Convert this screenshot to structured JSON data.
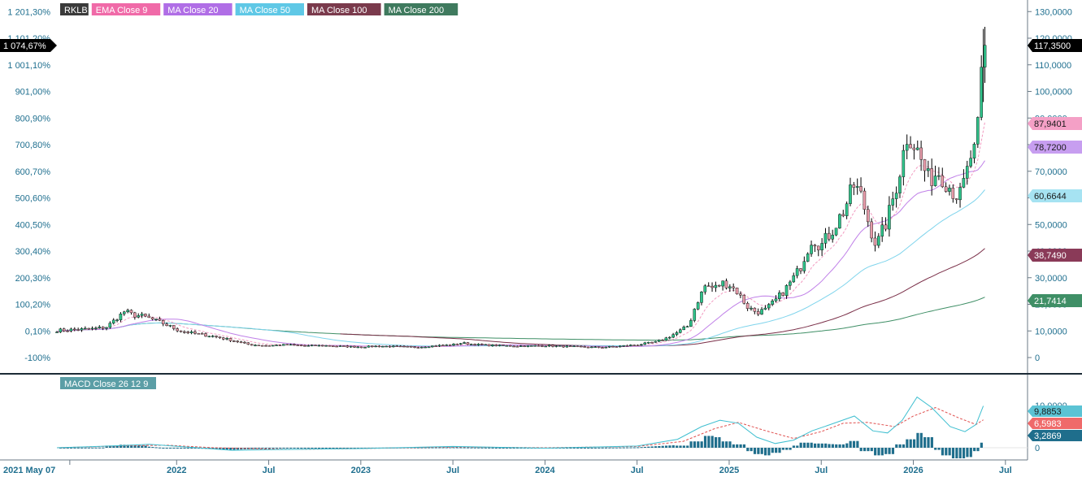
{
  "chart_data": {
    "type": "candlestick",
    "symbol": "RKLB",
    "legend": [
      {
        "label": "RKLB",
        "color": "#2b2b2b"
      },
      {
        "label": "EMA  Close 9",
        "color": "#f06aa8"
      },
      {
        "label": "MA  Close 20",
        "color": "#b06ee6"
      },
      {
        "label": "MA  Close 50",
        "color": "#5fc8e6"
      },
      {
        "label": "MA  Close 100",
        "color": "#7a3a4c"
      },
      {
        "label": "MA  Close 200",
        "color": "#3f7a5e"
      }
    ],
    "price_axis": {
      "ticks": [
        "0",
        "10,0000",
        "20,0000",
        "30,0000",
        "40,0000",
        "50,0000",
        "60,0000",
        "70,0000",
        "80,0000",
        "90,0000",
        "100,0000",
        "110,0000",
        "120,0000",
        "130,0000"
      ],
      "ylim": [
        0,
        130
      ]
    },
    "percent_axis": {
      "ticks": [
        "-100%",
        "0,10%",
        "100,20%",
        "200,30%",
        "300,40%",
        "400,50%",
        "500,60%",
        "600,70%",
        "700,80%",
        "800,90%",
        "901,00%",
        "1 001,10%",
        "1 101,20%",
        "1 201,30%"
      ]
    },
    "x_axis": {
      "start_label": "2021 May 07",
      "ticks": [
        {
          "label": "2022",
          "x": 2022.0
        },
        {
          "label": "Jul",
          "x": 2022.5
        },
        {
          "label": "2023",
          "x": 2023.0
        },
        {
          "label": "Jul",
          "x": 2023.5
        },
        {
          "label": "2024",
          "x": 2024.0
        },
        {
          "label": "Jul",
          "x": 2024.5
        },
        {
          "label": "2025",
          "x": 2025.0
        },
        {
          "label": "Jul",
          "x": 2025.5
        },
        {
          "label": "2026",
          "x": 2026.0
        },
        {
          "label": "Jul",
          "x": 2026.5
        }
      ],
      "xlim": [
        2021.35,
        2026.62
      ]
    },
    "price_path": [
      [
        2021.35,
        10.2
      ],
      [
        2021.45,
        10.5
      ],
      [
        2021.55,
        10.8
      ],
      [
        2021.62,
        11.5
      ],
      [
        2021.67,
        14.5
      ],
      [
        2021.72,
        17.5
      ],
      [
        2021.76,
        16.0
      ],
      [
        2021.82,
        15.5
      ],
      [
        2021.86,
        14.5
      ],
      [
        2021.92,
        13.0
      ],
      [
        2021.97,
        11.5
      ],
      [
        2022.02,
        10.0
      ],
      [
        2022.1,
        9.0
      ],
      [
        2022.2,
        8.0
      ],
      [
        2022.3,
        6.5
      ],
      [
        2022.4,
        4.8
      ],
      [
        2022.5,
        4.5
      ],
      [
        2022.6,
        4.8
      ],
      [
        2022.7,
        4.4
      ],
      [
        2022.8,
        4.5
      ],
      [
        2022.9,
        4.2
      ],
      [
        2023.0,
        4.0
      ],
      [
        2023.1,
        4.3
      ],
      [
        2023.2,
        4.1
      ],
      [
        2023.3,
        3.9
      ],
      [
        2023.4,
        4.4
      ],
      [
        2023.5,
        4.8
      ],
      [
        2023.55,
        5.5
      ],
      [
        2023.6,
        5.0
      ],
      [
        2023.7,
        4.6
      ],
      [
        2023.8,
        4.4
      ],
      [
        2023.9,
        4.3
      ],
      [
        2024.0,
        4.5
      ],
      [
        2024.1,
        4.2
      ],
      [
        2024.2,
        4.0
      ],
      [
        2024.3,
        3.8
      ],
      [
        2024.4,
        4.2
      ],
      [
        2024.5,
        4.8
      ],
      [
        2024.6,
        5.8
      ],
      [
        2024.65,
        7.0
      ],
      [
        2024.72,
        9.5
      ],
      [
        2024.78,
        12.0
      ],
      [
        2024.82,
        20.0
      ],
      [
        2024.87,
        27.0
      ],
      [
        2024.92,
        26.0
      ],
      [
        2024.96,
        28.0
      ],
      [
        2025.0,
        27.5
      ],
      [
        2025.04,
        25.0
      ],
      [
        2025.1,
        19.0
      ],
      [
        2025.15,
        17.0
      ],
      [
        2025.2,
        18.0
      ],
      [
        2025.26,
        22.0
      ],
      [
        2025.32,
        27.0
      ],
      [
        2025.38,
        33.0
      ],
      [
        2025.45,
        45.0
      ],
      [
        2025.5,
        42.0
      ],
      [
        2025.56,
        48.0
      ],
      [
        2025.62,
        55.0
      ],
      [
        2025.68,
        65.0
      ],
      [
        2025.72,
        60.0
      ],
      [
        2025.76,
        50.0
      ],
      [
        2025.8,
        42.0
      ],
      [
        2025.86,
        52.0
      ],
      [
        2025.92,
        68.0
      ],
      [
        2025.97,
        85.0
      ],
      [
        2026.02,
        78.0
      ],
      [
        2026.08,
        67.0
      ],
      [
        2026.14,
        70.0
      ],
      [
        2026.2,
        64.0
      ],
      [
        2026.25,
        60.0
      ],
      [
        2026.29,
        69.0
      ],
      [
        2026.32,
        78.0
      ],
      [
        2026.34,
        76.0
      ],
      [
        2026.36,
        95.0
      ],
      [
        2026.38,
        117.35
      ]
    ],
    "series_last": [
      {
        "name": "RKLB",
        "last": "117,3500",
        "pct": "1 074,67%",
        "color": "#000000"
      },
      {
        "name": "EMA  Close 9",
        "last": "87,9401",
        "color": "#f4a0c6"
      },
      {
        "name": "MA  Close 20",
        "last": "78,7200",
        "color": "#c79ef0"
      },
      {
        "name": "MA  Close 50",
        "last": "60,6644",
        "color": "#a6e3f2"
      },
      {
        "name": "MA  Close 100",
        "last": "38,7490",
        "color": "#8a3a58"
      },
      {
        "name": "MA  Close 200",
        "last": "21,7414",
        "color": "#3f8f66"
      }
    ],
    "macd": {
      "label": "MACD  Close 26 12 9",
      "axis_ticks": [
        "0",
        "10,0000"
      ],
      "ylim": [
        -4,
        13
      ],
      "macd_path": [
        [
          2021.35,
          0.0
        ],
        [
          2021.7,
          0.5
        ],
        [
          2021.85,
          0.8
        ],
        [
          2022.05,
          0.2
        ],
        [
          2022.3,
          -0.6
        ],
        [
          2022.6,
          -0.4
        ],
        [
          2023.0,
          -0.2
        ],
        [
          2023.5,
          0.3
        ],
        [
          2024.0,
          -0.1
        ],
        [
          2024.5,
          0.4
        ],
        [
          2024.72,
          2.0
        ],
        [
          2024.85,
          5.0
        ],
        [
          2024.95,
          6.5
        ],
        [
          2025.05,
          5.8
        ],
        [
          2025.15,
          2.5
        ],
        [
          2025.25,
          1.0
        ],
        [
          2025.35,
          1.8
        ],
        [
          2025.45,
          4.0
        ],
        [
          2025.55,
          5.5
        ],
        [
          2025.68,
          7.5
        ],
        [
          2025.78,
          4.0
        ],
        [
          2025.86,
          3.5
        ],
        [
          2025.94,
          6.5
        ],
        [
          2026.02,
          12.0
        ],
        [
          2026.1,
          9.5
        ],
        [
          2026.2,
          5.0
        ],
        [
          2026.28,
          3.8
        ],
        [
          2026.34,
          5.5
        ],
        [
          2026.38,
          9.8853
        ]
      ],
      "signal_path": [
        [
          2021.35,
          0.0
        ],
        [
          2021.75,
          0.5
        ],
        [
          2021.95,
          0.6
        ],
        [
          2022.2,
          0.0
        ],
        [
          2022.6,
          -0.4
        ],
        [
          2023.0,
          -0.2
        ],
        [
          2023.5,
          0.2
        ],
        [
          2024.0,
          0.0
        ],
        [
          2024.5,
          0.3
        ],
        [
          2024.75,
          1.5
        ],
        [
          2024.92,
          4.5
        ],
        [
          2025.05,
          6.0
        ],
        [
          2025.2,
          4.0
        ],
        [
          2025.35,
          2.2
        ],
        [
          2025.5,
          3.8
        ],
        [
          2025.62,
          5.8
        ],
        [
          2025.75,
          6.0
        ],
        [
          2025.9,
          5.0
        ],
        [
          2026.0,
          7.5
        ],
        [
          2026.12,
          9.5
        ],
        [
          2026.25,
          7.0
        ],
        [
          2026.34,
          5.5
        ],
        [
          2026.38,
          6.5983
        ]
      ],
      "hist": [
        [
          2021.65,
          0.5
        ],
        [
          2021.72,
          0.7
        ],
        [
          2021.8,
          0.5
        ],
        [
          2024.75,
          0.5
        ],
        [
          2024.82,
          1.5
        ],
        [
          2024.88,
          2.8
        ],
        [
          2024.93,
          2.5
        ],
        [
          2024.98,
          1.5
        ],
        [
          2025.05,
          0.8
        ],
        [
          2025.1,
          -0.8
        ],
        [
          2025.15,
          -1.5
        ],
        [
          2025.2,
          -1.8
        ],
        [
          2025.25,
          -1.2
        ],
        [
          2025.3,
          -0.5
        ],
        [
          2025.35,
          0.5
        ],
        [
          2025.42,
          1.2
        ],
        [
          2025.5,
          1.0
        ],
        [
          2025.6,
          0.8
        ],
        [
          2025.68,
          1.6
        ],
        [
          2025.74,
          -0.8
        ],
        [
          2025.8,
          -1.8
        ],
        [
          2025.86,
          -1.5
        ],
        [
          2025.92,
          0.8
        ],
        [
          2025.97,
          2.0
        ],
        [
          2026.02,
          3.5
        ],
        [
          2026.07,
          2.5
        ],
        [
          2026.12,
          -0.5
        ],
        [
          2026.18,
          -1.8
        ],
        [
          2026.24,
          -2.5
        ],
        [
          2026.28,
          -2.2
        ],
        [
          2026.33,
          -0.8
        ],
        [
          2026.36,
          1.2
        ],
        [
          2026.38,
          3.2869
        ]
      ],
      "last": [
        {
          "name": "MACD",
          "last": "9,8853",
          "color": "#5bc3d4"
        },
        {
          "name": "Signal",
          "last": "6,5983",
          "color": "#ef6a6a"
        },
        {
          "name": "Histogram",
          "last": "3,2869",
          "color": "#1f6e8c"
        }
      ]
    },
    "colors": {
      "up": "#2fc28a",
      "down": "#e59aa8",
      "wick": "#000000",
      "axis_text": "#1f6f8f",
      "grid": "#d8dde2"
    }
  }
}
